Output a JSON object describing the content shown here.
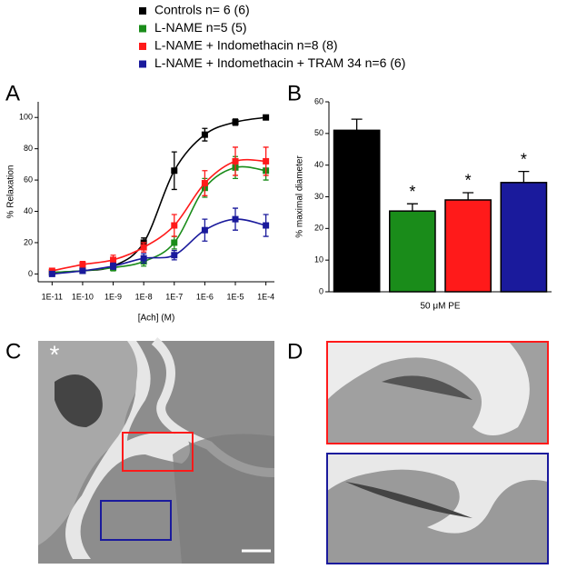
{
  "panels": {
    "a": "A",
    "b": "B",
    "c": "C",
    "d": "D",
    "c_marker": "*"
  },
  "chart_data": [
    {
      "type": "line",
      "xlabel": "[Ach] (M)",
      "ylabel": "% Relaxation",
      "xscale": "log",
      "x": [
        1e-11,
        1e-10,
        1e-09,
        1e-08,
        1e-07,
        1e-06,
        1e-05,
        0.0001
      ],
      "xlim": [
        3.5e-12,
        0.00019
      ],
      "xticks": [
        {
          "value": 1e-11,
          "label": "1E-11"
        },
        {
          "value": 1e-10,
          "label": "1E-10"
        },
        {
          "value": 1e-09,
          "label": "1E-9"
        },
        {
          "value": 1e-08,
          "label": "1E-8"
        },
        {
          "value": 1e-07,
          "label": "1E-7"
        },
        {
          "value": 1e-06,
          "label": "1E-6"
        },
        {
          "value": 1e-05,
          "label": "1E-5"
        },
        {
          "value": 0.0001,
          "label": "1E-4"
        }
      ],
      "ylim": [
        -5,
        110
      ],
      "yticks": [
        0,
        20,
        40,
        60,
        80,
        100
      ],
      "series": [
        {
          "name": "Controls n= 6 (6)",
          "color": "#000000",
          "values": [
            1,
            2,
            5,
            20,
            66,
            89,
            97,
            100
          ],
          "errors": [
            1,
            1.5,
            2,
            3,
            12,
            4,
            2,
            1
          ]
        },
        {
          "name": "L-NAME n=5 (5)",
          "color": "#1a8c1a",
          "values": [
            1,
            2,
            4,
            8,
            20,
            55,
            68,
            66
          ],
          "errors": [
            1,
            1.5,
            2,
            3,
            4,
            6,
            7,
            6
          ]
        },
        {
          "name": "L-NAME + Indomethacin n=8 (8)",
          "color": "#ff1a1a",
          "values": [
            2,
            6,
            9,
            17,
            31,
            58,
            72,
            72
          ],
          "errors": [
            1,
            2,
            3,
            3,
            7,
            8,
            9,
            9
          ]
        },
        {
          "name": "L-NAME + Indomethacin + TRAM 34 n=6 (6)",
          "color": "#1a1a9c",
          "values": [
            0,
            2,
            5,
            10,
            12,
            28,
            35,
            31
          ],
          "errors": [
            1,
            1.5,
            2,
            3,
            3,
            7,
            7,
            7
          ]
        }
      ]
    },
    {
      "type": "bar",
      "xlabel": "50 μM PE",
      "ylabel": "% maximal diameter",
      "categories": [
        null,
        null,
        null,
        null
      ],
      "values": [
        51,
        25.5,
        29,
        34.5
      ],
      "errors": [
        3.5,
        2.3,
        2.3,
        3.5
      ],
      "colors": [
        "#000000",
        "#1a8c1a",
        "#ff1a1a",
        "#1a1a9c"
      ],
      "significance": [
        null,
        "*",
        "*",
        "*"
      ],
      "ylim": [
        0,
        60
      ],
      "yticks": [
        0,
        10,
        20,
        30,
        40,
        50,
        60
      ]
    }
  ]
}
